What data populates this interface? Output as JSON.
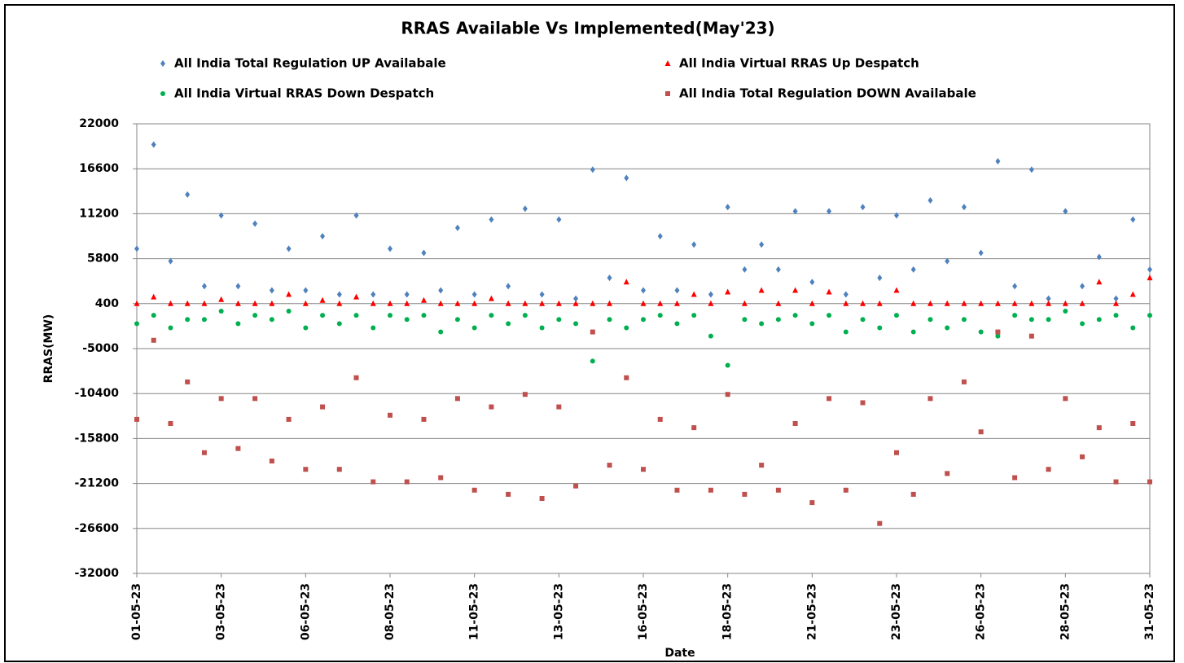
{
  "chart_data": {
    "type": "scatter",
    "title": "RRAS Available Vs Implemented(May'23)",
    "xlabel": "Date",
    "ylabel": "RRAS(MW)",
    "x": [
      0,
      0.5,
      1,
      1.5,
      2,
      2.5,
      3,
      3.5,
      4,
      4.5,
      5,
      5.5,
      6,
      6.5,
      7,
      7.5,
      8,
      8.5,
      9,
      9.5,
      10,
      10.5,
      11,
      11.5,
      12,
      12.5,
      13,
      13.5,
      14,
      14.5,
      15,
      15.5,
      16,
      16.5,
      17,
      17.5,
      18,
      18.5,
      19,
      19.5,
      20,
      20.5,
      21,
      21.5,
      22,
      22.5,
      23,
      23.5,
      24,
      24.5,
      25,
      25.5,
      26,
      26.5,
      27,
      27.5,
      28,
      28.5,
      29,
      29.5,
      30
    ],
    "xlim": [
      0,
      30
    ],
    "xticks": [
      {
        "value": 0,
        "label": "01-05-23"
      },
      {
        "value": 2.5,
        "label": "03-05-23"
      },
      {
        "value": 5,
        "label": "06-05-23"
      },
      {
        "value": 7.5,
        "label": "08-05-23"
      },
      {
        "value": 10,
        "label": "11-05-23"
      },
      {
        "value": 12.5,
        "label": "13-05-23"
      },
      {
        "value": 15,
        "label": "16-05-23"
      },
      {
        "value": 17.5,
        "label": "18-05-23"
      },
      {
        "value": 20,
        "label": "21-05-23"
      },
      {
        "value": 22.5,
        "label": "23-05-23"
      },
      {
        "value": 25,
        "label": "26-05-23"
      },
      {
        "value": 27.5,
        "label": "28-05-23"
      },
      {
        "value": 30,
        "label": "31-05-23"
      }
    ],
    "ylim": [
      -32000,
      22000
    ],
    "yticks": [
      -32000,
      -26600,
      -21200,
      -15800,
      -10400,
      -5000,
      400,
      5800,
      11200,
      16600,
      22000
    ],
    "grid": true,
    "series": [
      {
        "name": "All India Total Regulation UP Availabale",
        "color": "#4f81bd",
        "marker": "diamond",
        "values": [
          7000,
          19500,
          5500,
          13500,
          2500,
          11000,
          2500,
          10000,
          2000,
          7000,
          2000,
          8500,
          1500,
          11000,
          1500,
          7000,
          1500,
          6500,
          2000,
          9500,
          1500,
          10500,
          2500,
          11800,
          1500,
          10500,
          1000,
          16500,
          3500,
          15500,
          2000,
          8500,
          2000,
          7500,
          1500,
          12000,
          4500,
          7500,
          4500,
          11500,
          3000,
          11500,
          1500,
          12000,
          3500,
          11000,
          4500,
          12800,
          5500,
          12000,
          6500,
          17500,
          2500,
          16500,
          1000,
          11500,
          2500,
          6000,
          1000,
          10500,
          4500
        ]
      },
      {
        "name": "All India Virtual RRAS Up Despatch",
        "color": "#ff0000",
        "marker": "triangle",
        "values": [
          400,
          1200,
          400,
          400,
          400,
          900,
          400,
          400,
          400,
          1500,
          400,
          800,
          400,
          1200,
          400,
          400,
          400,
          800,
          400,
          400,
          400,
          1000,
          400,
          400,
          400,
          400,
          400,
          400,
          400,
          3000,
          400,
          400,
          400,
          1500,
          400,
          1800,
          400,
          2000,
          400,
          2000,
          400,
          1800,
          400,
          400,
          400,
          2000,
          400,
          400,
          400,
          400,
          400,
          400,
          400,
          400,
          400,
          400,
          400,
          3000,
          400,
          1500,
          3500
        ]
      },
      {
        "name": "All India Virtual RRAS Down Despatch",
        "color": "#00b050",
        "marker": "circle",
        "values": [
          -2000,
          -1000,
          -2500,
          -1500,
          -1500,
          -500,
          -2000,
          -1000,
          -1500,
          -500,
          -2500,
          -1000,
          -2000,
          -1000,
          -2500,
          -1000,
          -1500,
          -1000,
          -3000,
          -1500,
          -2500,
          -1000,
          -2000,
          -1000,
          -2500,
          -1500,
          -2000,
          -6500,
          -1500,
          -2500,
          -1500,
          -1000,
          -2000,
          -1000,
          -3500,
          -7000,
          -1500,
          -2000,
          -1500,
          -1000,
          -2000,
          -1000,
          -3000,
          -1500,
          -2500,
          -1000,
          -3000,
          -1500,
          -2500,
          -1500,
          -3000,
          -3500,
          -1000,
          -1500,
          -1500,
          -500,
          -2000,
          -1500,
          -1000,
          -2500,
          -1000
        ]
      },
      {
        "name": "All India Total  Regulation DOWN Availabale",
        "color": "#c0504d",
        "marker": "square",
        "values": [
          -13500,
          -4000,
          -14000,
          -9000,
          -17500,
          -11000,
          -17000,
          -11000,
          -18500,
          -13500,
          -19500,
          -12000,
          -19500,
          -8500,
          -21000,
          -13000,
          -21000,
          -13500,
          -20500,
          -11000,
          -22000,
          -12000,
          -22500,
          -10500,
          -23000,
          -12000,
          -21500,
          -3000,
          -19000,
          -8500,
          -19500,
          -13500,
          -22000,
          -14500,
          -22000,
          -10500,
          -22500,
          -19000,
          -22000,
          -14000,
          -23500,
          -11000,
          -22000,
          -11500,
          -26000,
          -17500,
          -22500,
          -11000,
          -20000,
          -9000,
          -15000,
          -3000,
          -20500,
          -3500,
          -19500,
          -11000,
          -18000,
          -14500,
          -21000,
          -14000,
          -21000
        ]
      }
    ]
  }
}
